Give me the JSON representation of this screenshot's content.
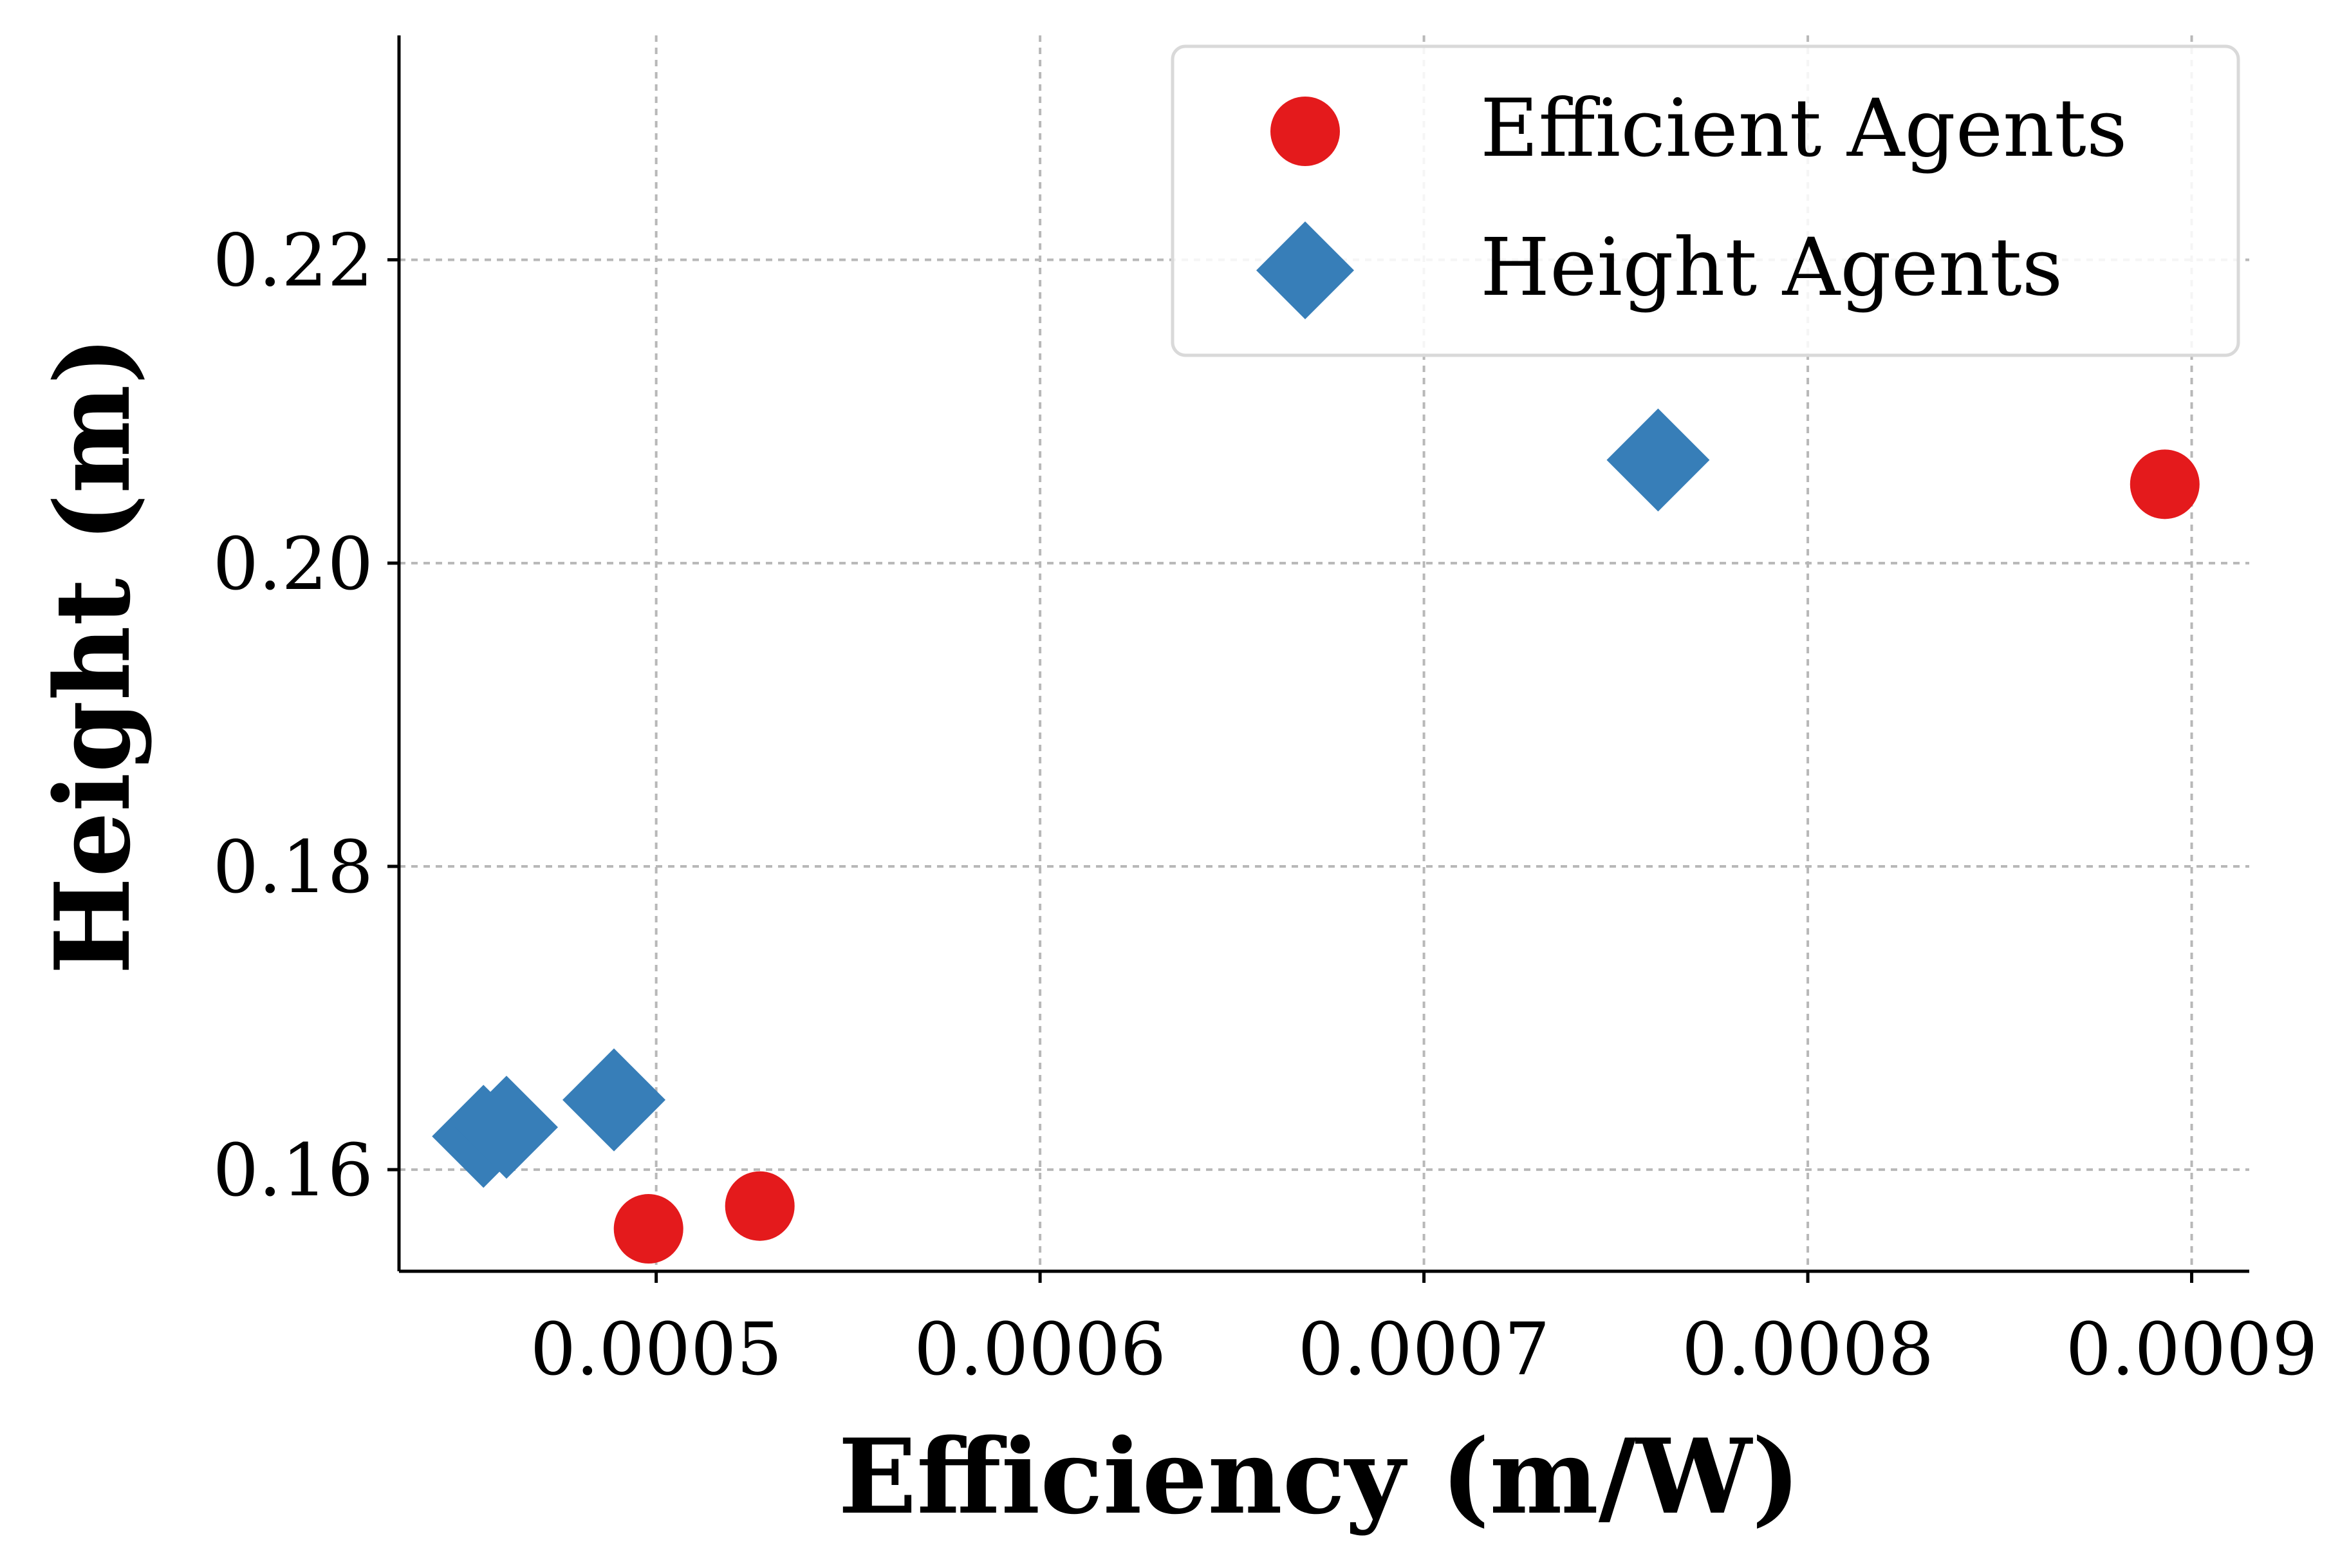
{
  "chart_data": {
    "type": "scatter",
    "xlabel": "Efficiency (m/W)",
    "ylabel": "Height (m)",
    "xlim": [
      0.000433,
      0.000915
    ],
    "ylim": [
      0.1533,
      0.2348
    ],
    "grid": true,
    "legend_position": "top-right",
    "x_ticks": [
      0.0005,
      0.0006,
      0.0007,
      0.0008,
      0.0009
    ],
    "x_tick_labels": [
      "0.0005",
      "0.0006",
      "0.0007",
      "0.0008",
      "0.0009"
    ],
    "y_ticks": [
      0.16,
      0.18,
      0.2,
      0.22
    ],
    "y_tick_labels": [
      "0.16",
      "0.18",
      "0.20",
      "0.22"
    ],
    "series": [
      {
        "name": "Efficient Agents",
        "marker": "circle",
        "color": "#e41a1c",
        "points": [
          {
            "x": 0.000498,
            "y": 0.1561
          },
          {
            "x": 0.000527,
            "y": 0.1576
          },
          {
            "x": 0.000893,
            "y": 0.2052
          }
        ]
      },
      {
        "name": "Height Agents",
        "marker": "diamond",
        "color": "#377eb8",
        "points": [
          {
            "x": 0.000455,
            "y": 0.1622
          },
          {
            "x": 0.000461,
            "y": 0.1628
          },
          {
            "x": 0.000489,
            "y": 0.1646
          },
          {
            "x": 0.000761,
            "y": 0.2068
          }
        ]
      }
    ]
  }
}
